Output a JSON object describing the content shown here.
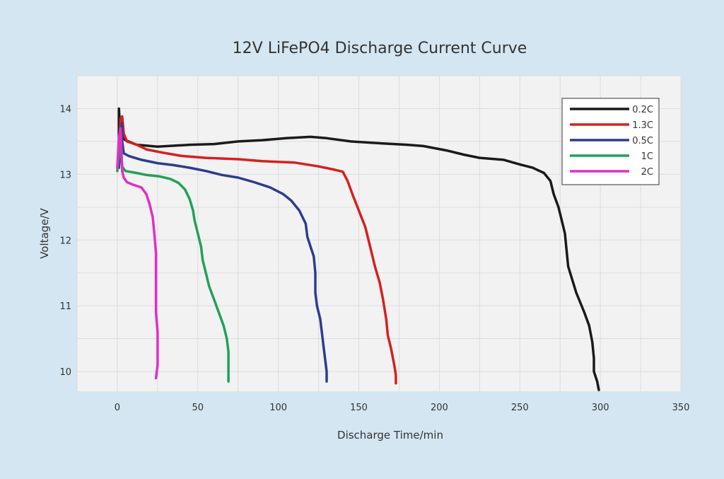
{
  "chart_data": {
    "type": "line",
    "title": "12V LiFePO4 Discharge Current Curve",
    "xlabel": "Discharge Time/min",
    "ylabel": "Voltage/V",
    "xlim": [
      -25,
      350
    ],
    "ylim": [
      9.7,
      14.5
    ],
    "xticks": [
      0,
      50,
      100,
      150,
      200,
      250,
      300,
      350
    ],
    "yticks": [
      10,
      11,
      12,
      13,
      14
    ],
    "xgrid_step": 25,
    "ygrid_step": 0.5,
    "legend_position": "top-right",
    "series": [
      {
        "name": "0.2C",
        "color": "#1a1a1a",
        "points": [
          [
            1,
            13.2
          ],
          [
            1,
            14.0
          ],
          [
            2,
            13.6
          ],
          [
            5,
            13.52
          ],
          [
            12,
            13.45
          ],
          [
            25,
            13.42
          ],
          [
            45,
            13.45
          ],
          [
            60,
            13.46
          ],
          [
            75,
            13.5
          ],
          [
            90,
            13.52
          ],
          [
            105,
            13.55
          ],
          [
            120,
            13.57
          ],
          [
            130,
            13.55
          ],
          [
            145,
            13.5
          ],
          [
            165,
            13.47
          ],
          [
            180,
            13.45
          ],
          [
            190,
            13.43
          ],
          [
            205,
            13.36
          ],
          [
            215,
            13.3
          ],
          [
            225,
            13.25
          ],
          [
            240,
            13.22
          ],
          [
            250,
            13.15
          ],
          [
            258,
            13.1
          ],
          [
            265,
            13.02
          ],
          [
            269,
            12.9
          ],
          [
            271,
            12.7
          ],
          [
            274,
            12.5
          ],
          [
            276,
            12.3
          ],
          [
            278,
            12.1
          ],
          [
            280,
            11.6
          ],
          [
            285,
            11.2
          ],
          [
            290,
            10.9
          ],
          [
            293,
            10.7
          ],
          [
            295,
            10.45
          ],
          [
            296,
            10.2
          ],
          [
            296,
            10.0
          ],
          [
            298,
            9.85
          ],
          [
            299,
            9.72
          ]
        ]
      },
      {
        "name": "1.3C",
        "color": "#d42020",
        "points": [
          [
            1,
            13.3
          ],
          [
            2,
            13.85
          ],
          [
            3,
            13.88
          ],
          [
            4,
            13.62
          ],
          [
            6,
            13.5
          ],
          [
            12,
            13.45
          ],
          [
            18,
            13.38
          ],
          [
            28,
            13.33
          ],
          [
            40,
            13.28
          ],
          [
            55,
            13.25
          ],
          [
            75,
            13.23
          ],
          [
            90,
            13.2
          ],
          [
            110,
            13.18
          ],
          [
            125,
            13.12
          ],
          [
            135,
            13.07
          ],
          [
            140,
            13.04
          ],
          [
            143,
            12.9
          ],
          [
            146,
            12.7
          ],
          [
            150,
            12.45
          ],
          [
            154,
            12.2
          ],
          [
            157,
            11.9
          ],
          [
            160,
            11.6
          ],
          [
            163,
            11.35
          ],
          [
            165,
            11.1
          ],
          [
            167,
            10.8
          ],
          [
            168,
            10.55
          ],
          [
            170,
            10.35
          ],
          [
            172,
            10.1
          ],
          [
            173,
            9.95
          ],
          [
            173,
            9.82
          ]
        ]
      },
      {
        "name": "0.5C",
        "color": "#2e3c8c",
        "points": [
          [
            1,
            13.1
          ],
          [
            2,
            13.5
          ],
          [
            3,
            13.78
          ],
          [
            3,
            13.5
          ],
          [
            4,
            13.32
          ],
          [
            7,
            13.28
          ],
          [
            15,
            13.22
          ],
          [
            25,
            13.17
          ],
          [
            35,
            13.14
          ],
          [
            45,
            13.1
          ],
          [
            55,
            13.05
          ],
          [
            65,
            12.99
          ],
          [
            75,
            12.95
          ],
          [
            85,
            12.88
          ],
          [
            95,
            12.8
          ],
          [
            103,
            12.7
          ],
          [
            108,
            12.6
          ],
          [
            113,
            12.45
          ],
          [
            117,
            12.25
          ],
          [
            118,
            12.05
          ],
          [
            120,
            11.9
          ],
          [
            122,
            11.75
          ],
          [
            123,
            11.5
          ],
          [
            123,
            11.2
          ],
          [
            124,
            11.0
          ],
          [
            126,
            10.8
          ],
          [
            127,
            10.6
          ],
          [
            128,
            10.4
          ],
          [
            129,
            10.2
          ],
          [
            130,
            10.0
          ],
          [
            130,
            9.85
          ]
        ]
      },
      {
        "name": "1C",
        "color": "#22a05a",
        "points": [
          [
            0,
            13.05
          ],
          [
            1,
            13.3
          ],
          [
            2,
            13.55
          ],
          [
            3,
            13.12
          ],
          [
            5,
            13.05
          ],
          [
            12,
            13.02
          ],
          [
            18,
            12.99
          ],
          [
            26,
            12.97
          ],
          [
            33,
            12.93
          ],
          [
            38,
            12.87
          ],
          [
            42,
            12.77
          ],
          [
            45,
            12.62
          ],
          [
            47,
            12.45
          ],
          [
            48,
            12.3
          ],
          [
            50,
            12.1
          ],
          [
            52,
            11.9
          ],
          [
            53,
            11.7
          ],
          [
            55,
            11.5
          ],
          [
            57,
            11.3
          ],
          [
            60,
            11.1
          ],
          [
            63,
            10.9
          ],
          [
            66,
            10.7
          ],
          [
            68,
            10.5
          ],
          [
            69,
            10.3
          ],
          [
            69,
            10.1
          ],
          [
            69,
            9.95
          ],
          [
            69,
            9.85
          ]
        ]
      },
      {
        "name": "2C",
        "color": "#e02ec8",
        "points": [
          [
            0,
            13.1
          ],
          [
            1,
            13.55
          ],
          [
            2,
            13.7
          ],
          [
            3,
            13.05
          ],
          [
            4,
            12.95
          ],
          [
            6,
            12.88
          ],
          [
            10,
            12.84
          ],
          [
            15,
            12.8
          ],
          [
            18,
            12.7
          ],
          [
            20,
            12.55
          ],
          [
            22,
            12.35
          ],
          [
            23,
            12.1
          ],
          [
            24,
            11.8
          ],
          [
            24,
            11.5
          ],
          [
            24,
            11.2
          ],
          [
            24,
            10.9
          ],
          [
            25,
            10.6
          ],
          [
            25,
            10.3
          ],
          [
            25,
            10.1
          ],
          [
            24,
            9.9
          ]
        ]
      }
    ]
  }
}
